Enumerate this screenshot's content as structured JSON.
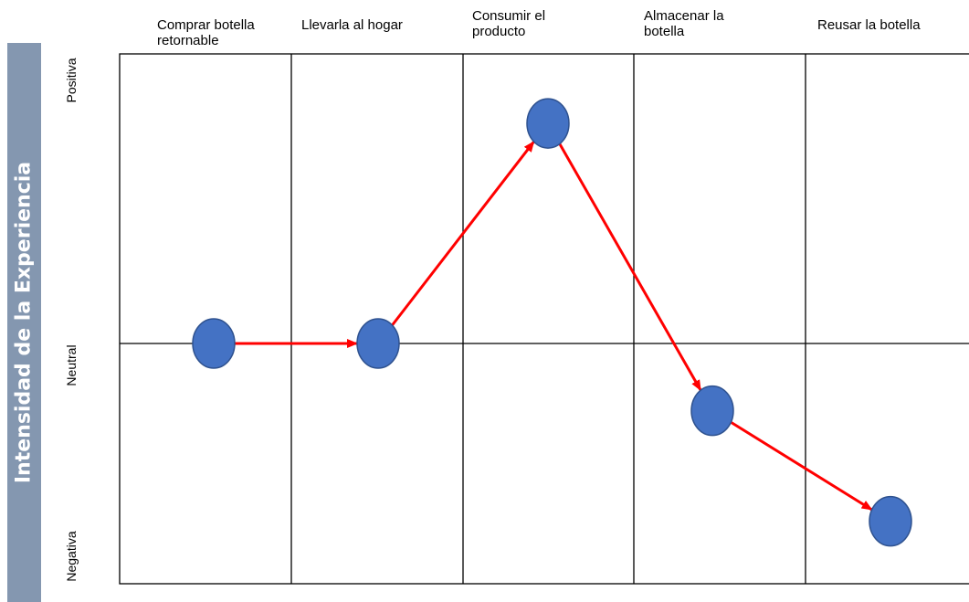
{
  "side_title": "Intensidad de la Experiencia",
  "levels": {
    "positive": "Positiva",
    "neutral": "Neutral",
    "negative": "Negativa"
  },
  "stages": [
    "Comprar botella retornable",
    "Llevarla al hogar",
    "Consumir el producto",
    "Almacenar la botella",
    "Reusar la botella"
  ],
  "colors": {
    "side_bar": "#8497b0",
    "node_fill": "#4472c4",
    "node_stroke": "#2f528f",
    "arrow": "#ff0000"
  },
  "chart_data": {
    "type": "line",
    "categories": [
      "Comprar botella retornable",
      "Llevarla al hogar",
      "Consumir el producto",
      "Almacenar la botella",
      "Reusar la botella"
    ],
    "scale": [
      "Negativa",
      "Neutral",
      "Positiva"
    ],
    "ylim": [
      -1,
      1
    ],
    "values": [
      0,
      0,
      0.76,
      -0.28,
      -0.74
    ]
  }
}
